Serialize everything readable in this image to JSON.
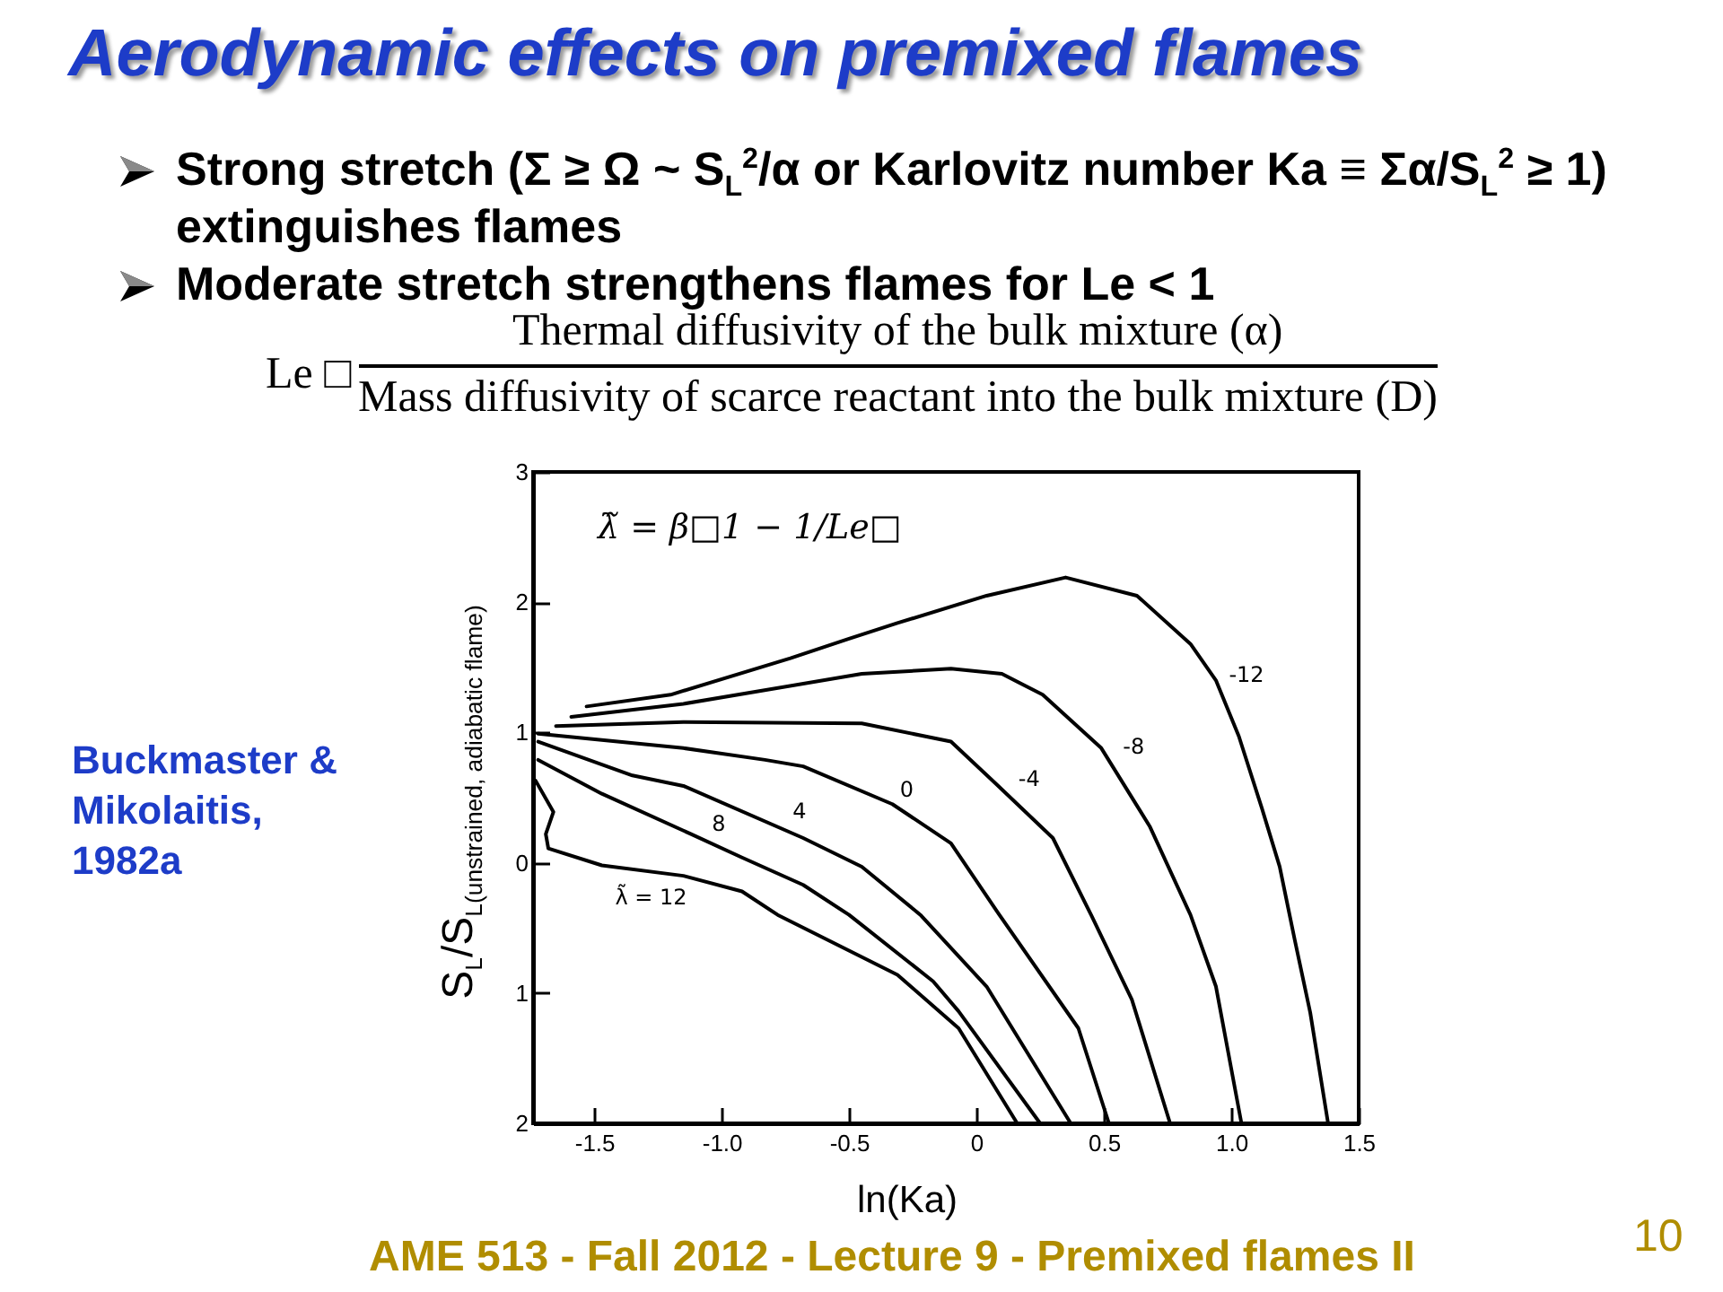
{
  "chart_data": {
    "type": "line",
    "title": "Aerodynamic effects on premixed flames",
    "xlabel": "ln(Ka)",
    "ylabel": "S$_{L}$/S$_{L(unstrained, adiabatic flame)}$",
    "annotations": [
      "Strong stretch (Σ ≥ Ω ~ S$_{L}$$^{2}$/α or Karlovitz number Ka ≡ Σα/S$_{L}$$^{2}$ ≥ 1) extinguishes flames",
      "Moderate stretch strengthens flames for Le < 1",
      "Le □",
      "Thermal diffusivity of the bulk mixture (α)",
      "Mass diffusivity of scarce reactant into the bulk mixture (D)",
      "λ̃ = β□1 − 1/Le□",
      "Buckmaster & Mikolaitis, 1982a",
      "AME 513 - Fall 2012 - Lecture 9 - Premixed flames II",
      "10"
    ],
    "xlim": [
      -1.74,
      1.5
    ],
    "ylim": [
      -2,
      3
    ],
    "xticks": [
      -1.5,
      {
        "value": -1,
        "label": "-1.0"
      },
      -0.5,
      0,
      0.5,
      {
        "value": 1,
        "label": "1.0"
      },
      1.5
    ],
    "yticks": [
      3,
      2,
      1,
      0,
      {
        "value": -1,
        "label": "1"
      },
      {
        "value": -2,
        "label": "2"
      }
    ],
    "series": [
      {
        "name": "-12",
        "color": "#000000",
        "x": [
          -1.53,
          -1.2,
          -0.73,
          -0.5,
          -0.31,
          0.04,
          0.35,
          0.63,
          0.84,
          0.94,
          1.03,
          1.12,
          1.19,
          1.25,
          1.31,
          1.38
        ],
        "values": [
          1.2,
          1.29,
          1.57,
          1.72,
          1.84,
          2.05,
          2.19,
          2.05,
          1.68,
          1.4,
          0.97,
          0.42,
          -0.03,
          -0.6,
          -1.15,
          -2.0
        ]
      },
      {
        "name": "-8",
        "color": "#000000",
        "x": [
          -1.59,
          -1.15,
          -0.45,
          -0.1,
          0.1,
          0.26,
          0.49,
          0.68,
          0.84,
          0.94,
          1.04
        ],
        "values": [
          1.12,
          1.22,
          1.45,
          1.49,
          1.45,
          1.29,
          0.88,
          0.28,
          -0.4,
          -0.95,
          -2.0
        ]
      },
      {
        "name": "-4",
        "color": "#000000",
        "x": [
          -1.65,
          -1.15,
          -0.45,
          -0.1,
          0.08,
          0.3,
          0.45,
          0.61,
          0.76
        ],
        "values": [
          1.05,
          1.08,
          1.07,
          0.93,
          0.6,
          0.19,
          -0.4,
          -1.05,
          -2.0
        ]
      },
      {
        "name": "0",
        "color": "#000000",
        "x": [
          -1.72,
          -1.15,
          -0.83,
          -0.68,
          -0.33,
          -0.1,
          0.09,
          0.4,
          0.52
        ],
        "values": [
          0.99,
          0.88,
          0.79,
          0.74,
          0.45,
          0.15,
          -0.4,
          -1.27,
          -2.0
        ]
      },
      {
        "name": "4",
        "color": "#000000",
        "x": [
          -1.72,
          -1.35,
          -1.15,
          -0.68,
          -0.45,
          -0.22,
          0.04,
          0.37
        ],
        "values": [
          0.93,
          0.67,
          0.59,
          0.19,
          -0.03,
          -0.4,
          -0.95,
          -2.0
        ]
      },
      {
        "name": "8",
        "color": "#000000",
        "x": [
          -1.72,
          -1.47,
          -1.12,
          -0.92,
          -0.68,
          -0.5,
          -0.17,
          -0.07,
          0.25
        ],
        "values": [
          0.79,
          0.53,
          0.22,
          0.04,
          -0.17,
          -0.4,
          -0.91,
          -1.14,
          -2.0
        ]
      },
      {
        "name": "λ̃ = 12",
        "color": "#000000",
        "x": [
          -1.73,
          -1.66,
          -1.69,
          -1.68,
          -1.47,
          -1.15,
          -0.92,
          -0.78,
          -0.31,
          -0.07,
          0.16
        ],
        "values": [
          0.63,
          0.39,
          0.22,
          0.11,
          -0.02,
          -0.1,
          -0.22,
          -0.4,
          -0.86,
          -1.27,
          -2.0
        ]
      }
    ]
  }
}
